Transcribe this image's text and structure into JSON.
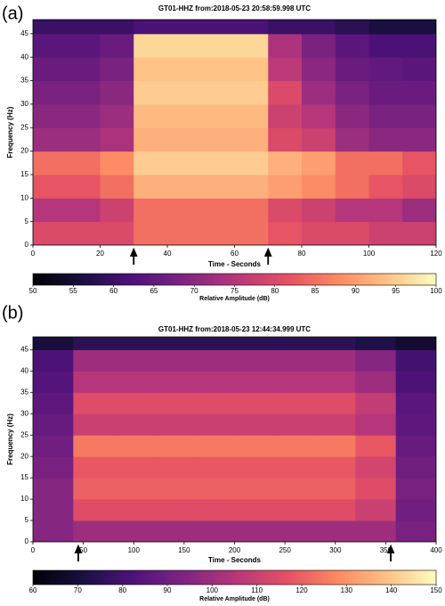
{
  "chart_data": [
    {
      "type": "heatmap",
      "panel": "(a)",
      "title": "GT01-HHZ  from:2018-05-23 20:58:59.998 UTC",
      "xlabel": "Time - Seconds",
      "ylabel": "Frequency (Hz)",
      "colormap": "magma",
      "x_edges": [
        0,
        10,
        20,
        30,
        40,
        50,
        60,
        70,
        80,
        90,
        100,
        110,
        120
      ],
      "y_edges": [
        0,
        5,
        10,
        15,
        20,
        25,
        30,
        35,
        40,
        45,
        50
      ],
      "values": [
        [
          80,
          80,
          80,
          85,
          85,
          85,
          85,
          82,
          80,
          80,
          78,
          78
        ],
        [
          75,
          75,
          78,
          85,
          85,
          85,
          85,
          80,
          78,
          75,
          75,
          72
        ],
        [
          82,
          82,
          85,
          92,
          92,
          92,
          92,
          90,
          88,
          85,
          82,
          80
        ],
        [
          85,
          85,
          88,
          95,
          95,
          95,
          95,
          92,
          90,
          85,
          85,
          82
        ],
        [
          72,
          72,
          74,
          92,
          92,
          92,
          92,
          80,
          78,
          72,
          70,
          70
        ],
        [
          70,
          70,
          72,
          93,
          93,
          93,
          93,
          78,
          75,
          70,
          68,
          68
        ],
        [
          68,
          68,
          70,
          95,
          95,
          95,
          95,
          80,
          72,
          68,
          66,
          66
        ],
        [
          66,
          66,
          68,
          94,
          94,
          94,
          94,
          76,
          70,
          66,
          65,
          64
        ],
        [
          64,
          64,
          66,
          96,
          96,
          96,
          96,
          74,
          68,
          64,
          62,
          62
        ],
        [
          60,
          60,
          60,
          62,
          62,
          62,
          62,
          60,
          60,
          58,
          56,
          56
        ]
      ],
      "xlim": [
        0,
        120
      ],
      "xticks": [
        0,
        20,
        40,
        60,
        80,
        100,
        120
      ],
      "ylim": [
        0,
        48
      ],
      "yticks": [
        0,
        5,
        10,
        15,
        20,
        25,
        30,
        35,
        40,
        45
      ],
      "markers": [
        30,
        70
      ],
      "colorbar": {
        "label": "Relative Amplitude (dB)",
        "lim": [
          50,
          100
        ],
        "ticks": [
          50,
          55,
          60,
          65,
          70,
          75,
          80,
          85,
          90,
          95,
          100
        ]
      }
    },
    {
      "type": "heatmap",
      "panel": "(b)",
      "title": "GT01-HHZ  from:2018-05-23 12:44:34.999 UTC",
      "xlabel": "Time - Seconds",
      "ylabel": "Frequency (Hz)",
      "colormap": "magma",
      "x_edges": [
        0,
        40,
        80,
        120,
        160,
        200,
        240,
        280,
        320,
        360,
        400
      ],
      "y_edges": [
        0,
        5,
        10,
        15,
        20,
        25,
        30,
        35,
        40,
        45,
        50
      ],
      "values": [
        [
          95,
          100,
          100,
          100,
          100,
          100,
          100,
          100,
          100,
          92
        ],
        [
          95,
          115,
          115,
          115,
          115,
          115,
          115,
          115,
          110,
          90
        ],
        [
          95,
          120,
          120,
          120,
          120,
          120,
          120,
          120,
          115,
          92
        ],
        [
          92,
          118,
          118,
          118,
          118,
          118,
          118,
          118,
          112,
          90
        ],
        [
          90,
          125,
          125,
          125,
          125,
          125,
          125,
          125,
          118,
          88
        ],
        [
          88,
          110,
          110,
          110,
          110,
          110,
          110,
          110,
          105,
          86
        ],
        [
          86,
          115,
          115,
          115,
          115,
          115,
          115,
          115,
          108,
          85
        ],
        [
          84,
          105,
          105,
          105,
          105,
          105,
          105,
          105,
          100,
          82
        ],
        [
          82,
          100,
          100,
          100,
          100,
          100,
          100,
          100,
          95,
          80
        ],
        [
          70,
          75,
          75,
          75,
          75,
          75,
          75,
          75,
          72,
          68
        ]
      ],
      "xlim": [
        0,
        400
      ],
      "xticks": [
        0,
        50,
        100,
        150,
        200,
        250,
        300,
        350,
        400
      ],
      "ylim": [
        0,
        48
      ],
      "yticks": [
        0,
        5,
        10,
        15,
        20,
        25,
        30,
        35,
        40,
        45
      ],
      "markers": [
        45,
        355
      ],
      "colorbar": {
        "label": "Relative Amplitude (dB)",
        "lim": [
          60,
          150
        ],
        "ticks": [
          60,
          70,
          80,
          90,
          100,
          110,
          120,
          130,
          140,
          150
        ]
      }
    }
  ]
}
